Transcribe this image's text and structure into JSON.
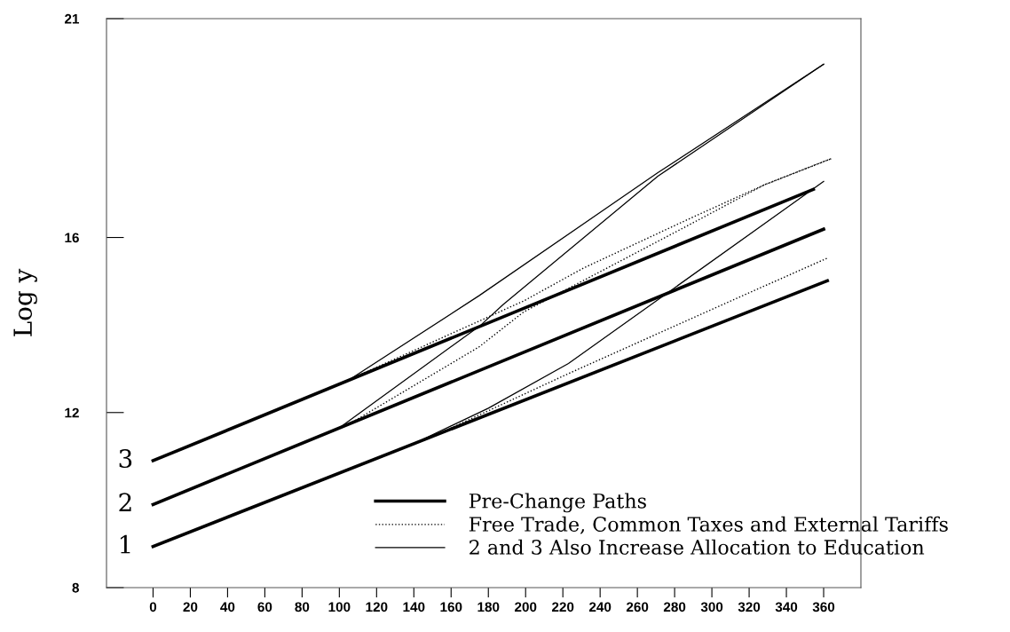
{
  "chart_data": {
    "type": "line",
    "ylabel": "Log y",
    "xlim": [
      -25,
      380
    ],
    "ylim": [
      8,
      21
    ],
    "xticks": [
      0,
      20,
      40,
      60,
      80,
      100,
      120,
      140,
      160,
      180,
      200,
      220,
      240,
      260,
      280,
      300,
      320,
      340,
      360
    ],
    "yticks": [
      8,
      12,
      16,
      21
    ],
    "grid": false,
    "legend": "bottom right",
    "marker": "none",
    "series": [
      {
        "name": "Pre-Change Paths",
        "color": "#000000",
        "line_style": "solid",
        "x": [
          0,
          362
        ],
        "values": [
          8.94,
          15.01
        ]
      },
      {
        "color": "#000000",
        "line_style": "solid",
        "x": [
          0,
          360
        ],
        "values": [
          9.9,
          16.19
        ]
      },
      {
        "color": "#000000",
        "line_style": "solid",
        "x": [
          0,
          354.5
        ],
        "values": [
          10.9,
          17.1
        ]
      },
      {
        "name": "Free Trade, Common Taxes and External Tariffs",
        "color": "#000000",
        "line_style": "dotted",
        "x": [
          0,
          150,
          223,
          306,
          362
        ],
        "values": [
          8.94,
          11.45,
          12.89,
          14.47,
          15.53
        ]
      },
      {
        "color": "#000000",
        "line_style": "dotted",
        "x": [
          0,
          105,
          175,
          199,
          287,
          328,
          364
        ],
        "values": [
          9.9,
          11.73,
          13.5,
          14.3,
          16.27,
          17.2,
          17.8
        ]
      },
      {
        "color": "#000000",
        "line_style": "dotted",
        "x": [
          0,
          100,
          199,
          231,
          287,
          328,
          364
        ],
        "values": [
          10.9,
          12.65,
          14.55,
          15.3,
          16.41,
          17.2,
          17.8
        ]
      },
      {
        "name": "2 and 3 Also Increase Allocation to Education",
        "color": "#000000",
        "line_style": "solid",
        "x": [
          0,
          140,
          180,
          223,
          360
        ],
        "values": [
          8.94,
          11.29,
          12.1,
          13.12,
          17.28
        ]
      },
      {
        "color": "#000000",
        "line_style": "solid",
        "x": [
          0,
          100,
          176,
          188,
          271,
          360
        ],
        "values": [
          9.9,
          11.65,
          14.0,
          14.47,
          17.4,
          19.96
        ]
      },
      {
        "color": "#000000",
        "line_style": "solid",
        "x": [
          0,
          105,
          175,
          271,
          360
        ],
        "values": [
          10.9,
          12.74,
          14.67,
          17.48,
          19.96
        ]
      }
    ],
    "annotations": [
      "1",
      "2",
      "3"
    ]
  }
}
